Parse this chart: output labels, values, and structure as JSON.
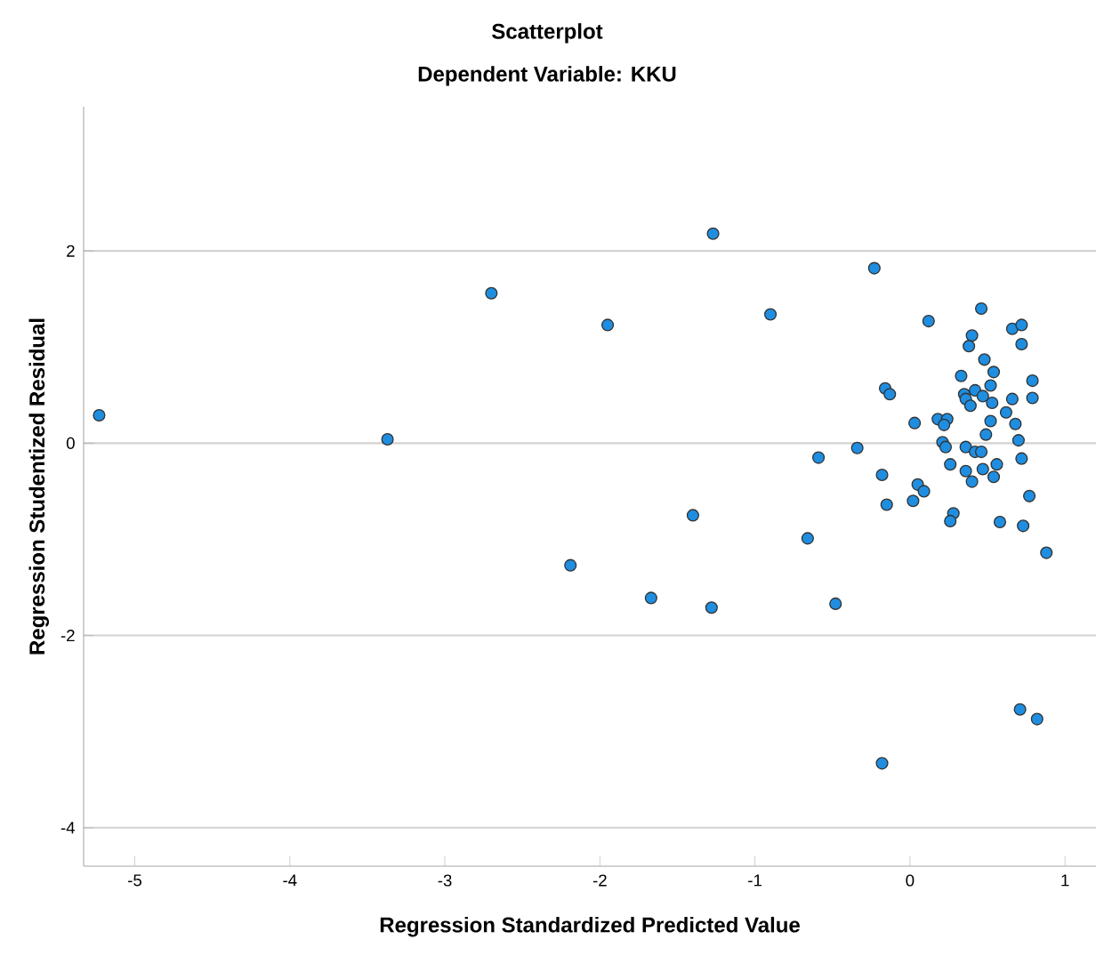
{
  "chart_data": {
    "type": "scatter",
    "title": "Scatterplot",
    "subtitle": "Dependent Variable: KKU",
    "xlabel": "Regression Standardized Predicted Value",
    "ylabel": "Regression Studentized Residual",
    "xlim": [
      -5.33,
      1.2
    ],
    "ylim": [
      -4.4,
      3.5
    ],
    "xticks": [
      -5,
      -4,
      -3,
      -2,
      -1,
      0,
      1
    ],
    "yticks": [
      -4,
      -2,
      0,
      2
    ],
    "grid": "y",
    "marker": "circle",
    "color": "#1f8ee0",
    "x": [
      -5.23,
      -3.37,
      -2.7,
      -1.95,
      -1.27,
      -0.9,
      -0.23,
      -0.59,
      -1.4,
      -0.66,
      -2.19,
      -1.67,
      -1.28,
      -0.48,
      0.71,
      0.82,
      -0.18,
      0.46,
      0.12,
      0.66,
      0.72,
      0.4,
      0.38,
      0.72,
      0.48,
      0.54,
      0.33,
      0.79,
      0.52,
      -0.16,
      -0.13,
      0.42,
      0.35,
      0.47,
      0.36,
      0.39,
      0.66,
      0.79,
      0.53,
      0.62,
      0.03,
      0.18,
      0.24,
      0.22,
      0.52,
      0.68,
      0.49,
      0.7,
      0.21,
      0.23,
      -0.34,
      0.36,
      0.42,
      0.46,
      0.72,
      0.26,
      0.36,
      0.47,
      0.56,
      0.54,
      0.4,
      -0.18,
      0.05,
      0.09,
      0.02,
      -0.15,
      0.77,
      0.28,
      0.26,
      0.58,
      0.73,
      0.88
    ],
    "values": [
      0.29,
      0.04,
      1.56,
      1.23,
      2.18,
      1.34,
      1.82,
      -0.15,
      -0.75,
      -0.99,
      -1.27,
      -1.61,
      -1.71,
      -1.67,
      -2.77,
      -2.87,
      -3.33,
      1.4,
      1.27,
      1.19,
      1.23,
      1.12,
      1.01,
      1.03,
      0.87,
      0.74,
      0.7,
      0.65,
      0.6,
      0.57,
      0.51,
      0.55,
      0.51,
      0.49,
      0.46,
      0.39,
      0.46,
      0.47,
      0.42,
      0.32,
      0.21,
      0.25,
      0.25,
      0.19,
      0.23,
      0.2,
      0.09,
      0.03,
      0.01,
      -0.04,
      -0.05,
      -0.04,
      -0.09,
      -0.09,
      -0.16,
      -0.22,
      -0.29,
      -0.27,
      -0.22,
      -0.35,
      -0.4,
      -0.33,
      -0.43,
      -0.5,
      -0.6,
      -0.64,
      -0.55,
      -0.73,
      -0.81,
      -0.82,
      -0.86,
      -1.14
    ]
  }
}
